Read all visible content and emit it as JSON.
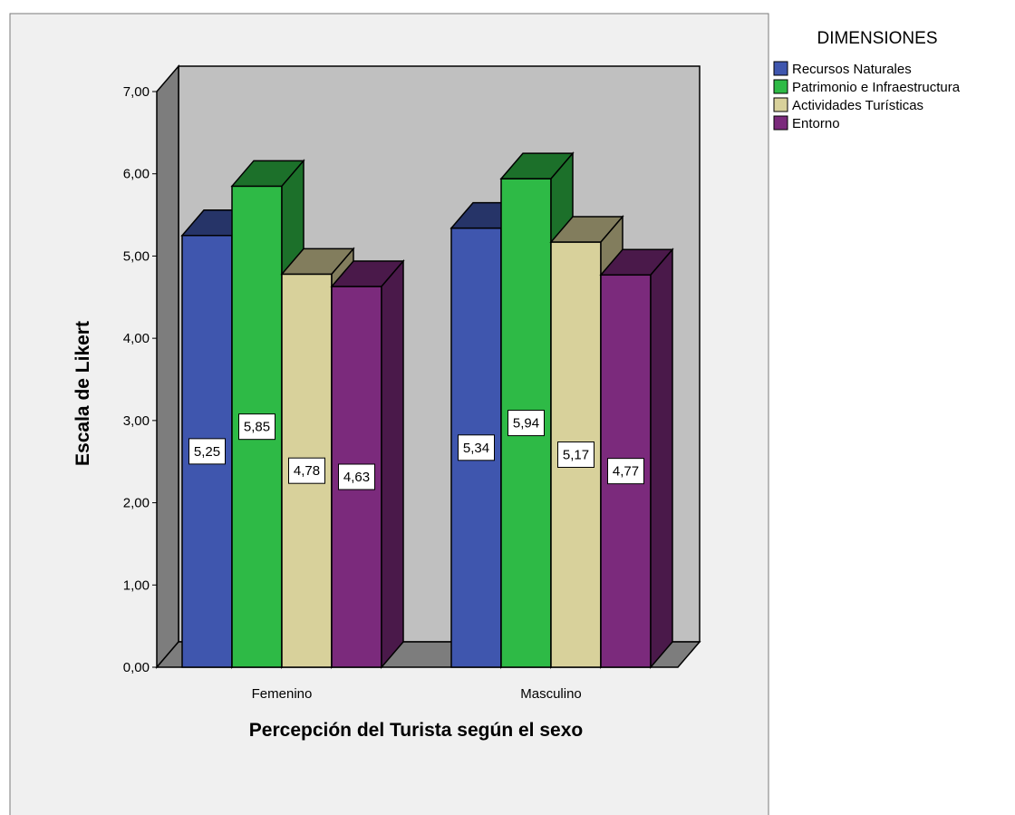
{
  "chart_data": {
    "type": "bar",
    "title": "",
    "xlabel": "Percepción del Turista según el sexo",
    "ylabel": "Escala de Likert",
    "categories": [
      "Femenino",
      "Masculino"
    ],
    "ylim": [
      0,
      7
    ],
    "yticks": [
      "0,00",
      "1,00",
      "2,00",
      "3,00",
      "4,00",
      "5,00",
      "6,00",
      "7,00"
    ],
    "legend_title": "DIMENSIONES",
    "legend_position": "top-right",
    "grid": false,
    "three_d": true,
    "series": [
      {
        "name": "Recursos Naturales",
        "values": [
          5.25,
          5.34
        ],
        "labels": [
          "5,25",
          "5,34"
        ],
        "color": "#3F56AE"
      },
      {
        "name": "Patrimonio e Infraestructura",
        "values": [
          5.85,
          5.94
        ],
        "labels": [
          "5,85",
          "5,94"
        ],
        "color": "#2EBA46"
      },
      {
        "name": "Actividades Turísticas",
        "values": [
          4.78,
          5.17
        ],
        "labels": [
          "4,78",
          "5,17"
        ],
        "color": "#D8D19B"
      },
      {
        "name": "Entorno",
        "values": [
          4.63,
          4.77
        ],
        "labels": [
          "4,63",
          "4,77"
        ],
        "color": "#7B2A7C"
      }
    ],
    "colors": {
      "plot_background": "#F0F0F0",
      "back_wall": "#C0C0C0",
      "side_wall": "#7D7D7D",
      "floor": "#7D7D7D"
    }
  }
}
